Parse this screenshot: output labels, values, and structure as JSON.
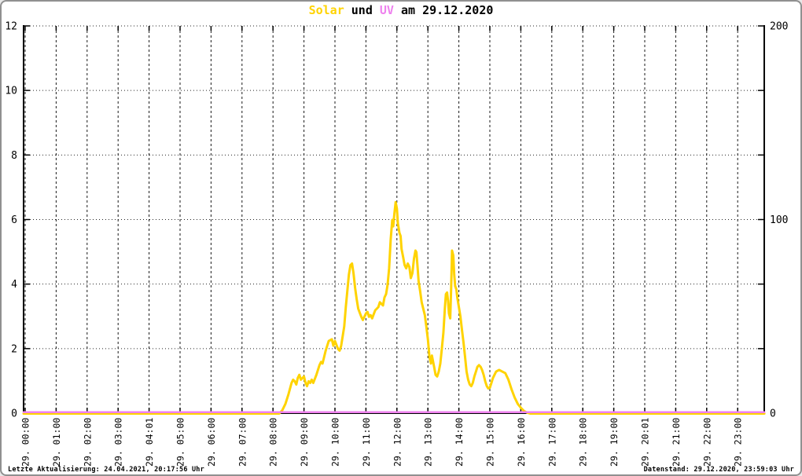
{
  "page": {
    "footer": {
      "left": "Letzte Aktualisierung: 24.04.2021, 20:17:56 Uhr",
      "right": "Datenstand: 29.12.2020, 23:59:03 Uhr"
    }
  },
  "chart_data": {
    "type": "line",
    "title": "Solar und UV am 29.12.2020",
    "title_parts": [
      {
        "text": "Solar",
        "color": "#ffd300"
      },
      {
        "text": " und ",
        "color": "#000000"
      },
      {
        "text": "UV",
        "color": "#ee82ee"
      },
      {
        "text": " am 29.12.2020",
        "color": "#000000"
      }
    ],
    "grid": true,
    "legend_position": "none",
    "x_axis": {
      "unit": "hour of day",
      "tick_labels": [
        "29. 00:00",
        "29. 01:00",
        "29. 02:00",
        "29. 03:00",
        "29. 04:01",
        "29. 05:00",
        "29. 06:00",
        "29. 07:00",
        "29. 08:00",
        "29. 09:00",
        "29. 10:00",
        "29. 11:00",
        "29. 12:00",
        "29. 13:00",
        "29. 14:00",
        "29. 15:00",
        "29. 16:00",
        "29. 17:00",
        "29. 18:00",
        "29. 19:00",
        "29. 20:01",
        "29. 21:00",
        "29. 22:00",
        "29. 23:00"
      ]
    },
    "y_axis_left": {
      "min": 0,
      "max": 12,
      "tick_values": [
        0,
        2,
        4,
        6,
        8,
        10,
        12
      ]
    },
    "y_axis_right": {
      "min": 0,
      "max": 200,
      "tick_values": [
        0,
        100,
        200
      ]
    },
    "series": [
      {
        "name": "Solar",
        "color": "#ffd300",
        "axis": "left",
        "points": [
          [
            -0.05,
            0
          ],
          [
            8.2,
            0
          ],
          [
            8.3,
            0.1
          ],
          [
            8.4,
            0.3
          ],
          [
            8.5,
            0.6
          ],
          [
            8.6,
            0.95
          ],
          [
            8.65,
            1.05
          ],
          [
            8.7,
            1.0
          ],
          [
            8.75,
            0.9
          ],
          [
            8.8,
            1.1
          ],
          [
            8.85,
            1.2
          ],
          [
            8.9,
            1.05
          ],
          [
            9.0,
            1.15
          ],
          [
            9.05,
            0.95
          ],
          [
            9.1,
            0.85
          ],
          [
            9.15,
            1.0
          ],
          [
            9.2,
            0.95
          ],
          [
            9.25,
            1.05
          ],
          [
            9.3,
            0.95
          ],
          [
            9.4,
            1.2
          ],
          [
            9.5,
            1.5
          ],
          [
            9.55,
            1.6
          ],
          [
            9.6,
            1.55
          ],
          [
            9.7,
            1.95
          ],
          [
            9.8,
            2.25
          ],
          [
            9.9,
            2.3
          ],
          [
            9.95,
            2.1
          ],
          [
            10.0,
            2.25
          ],
          [
            10.1,
            2.0
          ],
          [
            10.15,
            1.95
          ],
          [
            10.2,
            2.1
          ],
          [
            10.3,
            2.7
          ],
          [
            10.35,
            3.3
          ],
          [
            10.45,
            4.3
          ],
          [
            10.5,
            4.6
          ],
          [
            10.55,
            4.65
          ],
          [
            10.6,
            4.35
          ],
          [
            10.65,
            3.9
          ],
          [
            10.7,
            3.55
          ],
          [
            10.75,
            3.25
          ],
          [
            10.85,
            3.0
          ],
          [
            10.9,
            2.9
          ],
          [
            11.0,
            3.1
          ],
          [
            11.05,
            3.15
          ],
          [
            11.1,
            3.0
          ],
          [
            11.15,
            3.05
          ],
          [
            11.2,
            2.95
          ],
          [
            11.3,
            3.2
          ],
          [
            11.35,
            3.25
          ],
          [
            11.4,
            3.3
          ],
          [
            11.45,
            3.45
          ],
          [
            11.5,
            3.4
          ],
          [
            11.55,
            3.35
          ],
          [
            11.6,
            3.6
          ],
          [
            11.65,
            3.7
          ],
          [
            11.7,
            4.0
          ],
          [
            11.75,
            4.5
          ],
          [
            11.8,
            5.4
          ],
          [
            11.85,
            6.0
          ],
          [
            11.88,
            5.8
          ],
          [
            11.92,
            6.2
          ],
          [
            11.96,
            6.55
          ],
          [
            12.0,
            6.35
          ],
          [
            12.03,
            5.9
          ],
          [
            12.08,
            5.6
          ],
          [
            12.12,
            5.5
          ],
          [
            12.15,
            5.1
          ],
          [
            12.2,
            4.85
          ],
          [
            12.25,
            4.6
          ],
          [
            12.3,
            4.5
          ],
          [
            12.35,
            4.65
          ],
          [
            12.4,
            4.55
          ],
          [
            12.45,
            4.2
          ],
          [
            12.5,
            4.35
          ],
          [
            12.55,
            4.8
          ],
          [
            12.6,
            5.05
          ],
          [
            12.63,
            5.0
          ],
          [
            12.67,
            4.5
          ],
          [
            12.7,
            4.1
          ],
          [
            12.75,
            3.8
          ],
          [
            12.8,
            3.45
          ],
          [
            12.85,
            3.25
          ],
          [
            12.9,
            3.05
          ],
          [
            12.95,
            2.7
          ],
          [
            13.0,
            2.3
          ],
          [
            13.05,
            1.75
          ],
          [
            13.1,
            1.55
          ],
          [
            13.13,
            1.8
          ],
          [
            13.17,
            1.6
          ],
          [
            13.2,
            1.45
          ],
          [
            13.25,
            1.2
          ],
          [
            13.3,
            1.15
          ],
          [
            13.35,
            1.3
          ],
          [
            13.4,
            1.55
          ],
          [
            13.45,
            2.0
          ],
          [
            13.5,
            2.5
          ],
          [
            13.55,
            3.3
          ],
          [
            13.58,
            3.7
          ],
          [
            13.62,
            3.75
          ],
          [
            13.65,
            3.5
          ],
          [
            13.68,
            3.1
          ],
          [
            13.72,
            2.95
          ],
          [
            13.75,
            3.9
          ],
          [
            13.78,
            5.05
          ],
          [
            13.82,
            4.9
          ],
          [
            13.85,
            4.3
          ],
          [
            13.88,
            3.95
          ],
          [
            13.92,
            3.85
          ],
          [
            13.95,
            3.6
          ],
          [
            14.0,
            3.3
          ],
          [
            14.05,
            3.0
          ],
          [
            14.1,
            2.6
          ],
          [
            14.15,
            2.2
          ],
          [
            14.2,
            1.75
          ],
          [
            14.25,
            1.3
          ],
          [
            14.3,
            1.05
          ],
          [
            14.35,
            0.9
          ],
          [
            14.4,
            0.85
          ],
          [
            14.45,
            0.95
          ],
          [
            14.5,
            1.15
          ],
          [
            14.55,
            1.3
          ],
          [
            14.6,
            1.45
          ],
          [
            14.65,
            1.5
          ],
          [
            14.7,
            1.45
          ],
          [
            14.75,
            1.35
          ],
          [
            14.8,
            1.2
          ],
          [
            14.85,
            1.0
          ],
          [
            14.9,
            0.85
          ],
          [
            14.95,
            0.78
          ],
          [
            15.0,
            0.8
          ],
          [
            15.05,
            0.95
          ],
          [
            15.1,
            1.1
          ],
          [
            15.15,
            1.2
          ],
          [
            15.2,
            1.3
          ],
          [
            15.3,
            1.35
          ],
          [
            15.4,
            1.3
          ],
          [
            15.5,
            1.25
          ],
          [
            15.55,
            1.15
          ],
          [
            15.6,
            1.05
          ],
          [
            15.65,
            0.9
          ],
          [
            15.7,
            0.75
          ],
          [
            15.8,
            0.5
          ],
          [
            15.9,
            0.3
          ],
          [
            16.0,
            0.18
          ],
          [
            16.1,
            0.08
          ],
          [
            16.2,
            0.03
          ],
          [
            16.3,
            0
          ],
          [
            23.86,
            0
          ]
        ]
      },
      {
        "name": "UV",
        "color": "#ee82ee",
        "axis": "left",
        "points": [
          [
            -0.05,
            0
          ],
          [
            23.86,
            0
          ]
        ]
      }
    ]
  }
}
